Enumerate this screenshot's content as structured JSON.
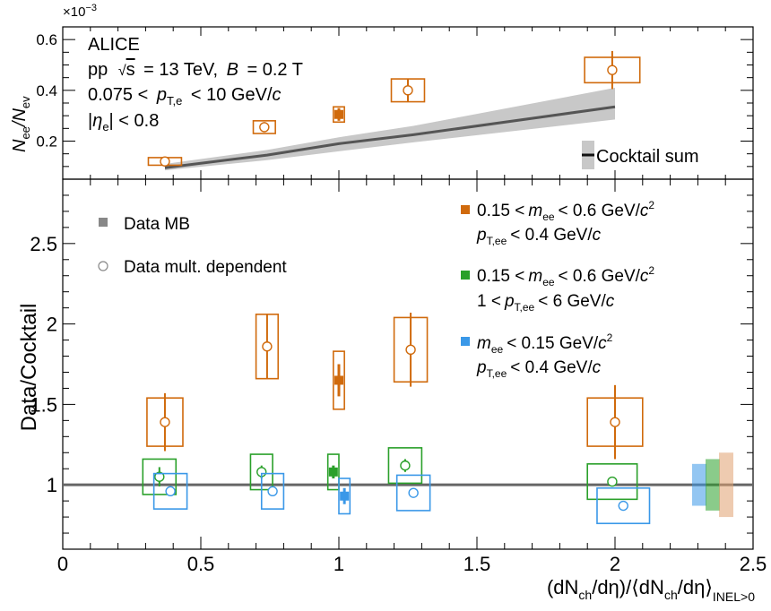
{
  "chart_data": [
    {
      "type": "line",
      "panel": "top",
      "multiplier_label": "×10",
      "multiplier_exponent": "−3",
      "ylabel": {
        "main": "N",
        "sub1": "ee",
        "mid": "/N",
        "sub2": "ev"
      },
      "ylim": [
        0.05,
        0.65
      ],
      "yticks": [
        "0.2",
        "0.4",
        "0.6"
      ],
      "ytick_values": [
        0.2,
        0.4,
        0.6
      ],
      "annotations": {
        "experiment": "ALICE",
        "system": "pp",
        "energy": "= 13 TeV,",
        "sqrt_s": "s",
        "field_var": "B",
        "field_val": "= 0.2 T",
        "pt_range_pre": "0.075 <",
        "pt_var": "p",
        "pt_sub": "T,e",
        "pt_range_post": "< 10 GeV/",
        "pt_c": "c",
        "eta_bar1": "|",
        "eta_var": "η",
        "eta_sub": "e",
        "eta_post": "| < 0.8"
      },
      "legend": [
        {
          "label": "Cocktail sum",
          "color": "#555555",
          "band": "#c8c8c8"
        }
      ],
      "cocktail": {
        "x": [
          0.37,
          0.74,
          1.0,
          1.27,
          2.0
        ],
        "y": [
          0.095,
          0.145,
          0.19,
          0.225,
          0.335
        ],
        "ylo": [
          0.085,
          0.125,
          0.16,
          0.195,
          0.285
        ],
        "yhi": [
          0.11,
          0.165,
          0.215,
          0.26,
          0.41
        ]
      },
      "data_mult": {
        "x": [
          0.37,
          0.73,
          1.25,
          1.99
        ],
        "y": [
          0.12,
          0.255,
          0.4,
          0.48
        ],
        "yerr": [
          0.006,
          0.02,
          0.045,
          0.075
        ],
        "sys_halfwidth": [
          0.06,
          0.04,
          0.06,
          0.1
        ],
        "sys": [
          0.015,
          0.025,
          0.045,
          0.05
        ]
      },
      "data_mb": {
        "x": [
          1.0
        ],
        "y": [
          0.305
        ],
        "yerr": [
          0.025
        ],
        "sys": [
          0.03
        ],
        "sys_halfwidth": [
          0.02
        ]
      },
      "color": "#d06a0c"
    },
    {
      "type": "scatter",
      "panel": "bottom",
      "xlabel": {
        "p1": "(dN",
        "s1": "ch",
        "p2": "/dη)/⟨dN",
        "s2": "ch",
        "p3": "/dη⟩",
        "s3": "INEL>0"
      },
      "ylabel": "Data/Cocktail",
      "xlim": [
        0,
        2.5
      ],
      "ylim": [
        0.6,
        2.9
      ],
      "xticks": [
        "0",
        "0.5",
        "1",
        "1.5",
        "2",
        "2.5"
      ],
      "xtick_values": [
        0,
        0.5,
        1,
        1.5,
        2,
        2.5
      ],
      "yticks": [
        "1",
        "1.5",
        "2",
        "2.5"
      ],
      "ytick_values": [
        1,
        1.5,
        2,
        2.5
      ],
      "reference_line": 1,
      "legend": {
        "mb": "Data MB",
        "mult": "Data mult. dependent",
        "entries": [
          {
            "color": "#d06a0c",
            "l1_pre": "0.15 <",
            "l1_var": "m",
            "l1_sub": "ee",
            "l1_post": "< 0.6 GeV/",
            "l1_c": "c",
            "l1_sup": "2",
            "l2_var": "p",
            "l2_sub": "T,ee",
            "l2_post": "< 0.4 GeV/",
            "l2_c": "c",
            "l2_pre": ""
          },
          {
            "color": "#2aa02a",
            "l1_pre": "0.15 <",
            "l1_var": "m",
            "l1_sub": "ee",
            "l1_post": "< 0.6 GeV/",
            "l1_c": "c",
            "l1_sup": "2",
            "l2_pre": "1 <",
            "l2_var": "p",
            "l2_sub": "T,ee",
            "l2_post": "< 6 GeV/",
            "l2_c": "c"
          },
          {
            "color": "#3a98e8",
            "l1_pre": "",
            "l1_var": "m",
            "l1_sub": "ee",
            "l1_post": "< 0.15 GeV/",
            "l1_c": "c",
            "l1_sup": "2",
            "l2_pre": "",
            "l2_var": "p",
            "l2_sub": "T,ee",
            "l2_post": "< 0.4 GeV/",
            "l2_c": "c"
          }
        ]
      },
      "series": [
        {
          "name": "0.15 < mee < 0.6 GeV/c2, pT,ee < 0.4 GeV/c",
          "color": "#d06a0c",
          "mult": {
            "x": [
              0.37,
              0.74,
              1.26,
              2.0
            ],
            "y": [
              1.39,
              1.86,
              1.84,
              1.39
            ],
            "yerr": [
              0.18,
              0.2,
              0.23,
              0.23
            ],
            "sys": [
              0.15,
              0.2,
              0.2,
              0.15
            ],
            "sys_halfwidth": [
              0.065,
              0.04,
              0.06,
              0.1
            ]
          },
          "mb": {
            "x": [
              1.0
            ],
            "y": [
              1.65
            ],
            "yerr": [
              0.1
            ],
            "sys": [
              0.18
            ],
            "sys_halfwidth": [
              0.02
            ]
          }
        },
        {
          "name": "0.15 < mee < 0.6 GeV/c2, 1 < pT,ee < 6 GeV/c",
          "color": "#2aa02a",
          "mult": {
            "x": [
              0.35,
              0.72,
              1.24,
              1.99
            ],
            "y": [
              1.05,
              1.08,
              1.12,
              1.02
            ],
            "yerr": [
              0.06,
              0.04,
              0.04,
              0.03
            ],
            "sys": [
              0.11,
              0.11,
              0.11,
              0.11
            ],
            "sys_halfwidth": [
              0.06,
              0.04,
              0.06,
              0.09
            ]
          },
          "mb": {
            "x": [
              0.98
            ],
            "y": [
              1.08
            ],
            "yerr": [
              0.04
            ],
            "sys": [
              0.11
            ],
            "sys_halfwidth": [
              0.02
            ]
          }
        },
        {
          "name": "mee < 0.15 GeV/c2, pT,ee < 0.4 GeV/c",
          "color": "#3a98e8",
          "mult": {
            "x": [
              0.39,
              0.76,
              1.27,
              2.03
            ],
            "y": [
              0.96,
              0.96,
              0.95,
              0.87
            ],
            "yerr": [
              0.02,
              0.02,
              0.02,
              0.02
            ],
            "sys": [
              0.11,
              0.11,
              0.11,
              0.11
            ],
            "sys_halfwidth": [
              0.06,
              0.04,
              0.06,
              0.095
            ]
          },
          "mb": {
            "x": [
              1.02
            ],
            "y": [
              0.93
            ],
            "yerr": [
              0.05
            ],
            "sys": [
              0.11
            ],
            "sys_halfwidth": [
              0.02
            ]
          }
        }
      ],
      "norm_bands": [
        {
          "color": "#3a98e8",
          "center": 1.0,
          "lo": 0.87,
          "hi": 1.13
        },
        {
          "color": "#2aa02a",
          "center": 1.0,
          "lo": 0.84,
          "hi": 1.16
        },
        {
          "color": "#e0a070",
          "center": 1.0,
          "lo": 0.8,
          "hi": 1.2
        }
      ]
    }
  ]
}
